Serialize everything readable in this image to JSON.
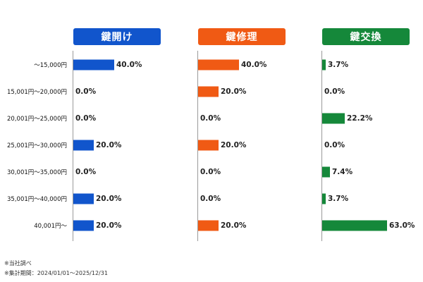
{
  "chart_data": {
    "type": "bar",
    "categories": [
      "～15,000円",
      "15,001円～20,000円",
      "20,001円～25,000円",
      "25,001円～30,000円",
      "30,001円～35,000円",
      "35,001円～40,000円",
      "40,001円～"
    ],
    "series": [
      {
        "name": "鍵開け",
        "color": "#1155cc",
        "values": [
          40.0,
          0.0,
          0.0,
          20.0,
          0.0,
          20.0,
          20.0
        ]
      },
      {
        "name": "鍵修理",
        "color": "#f05a14",
        "values": [
          40.0,
          20.0,
          0.0,
          20.0,
          0.0,
          0.0,
          20.0
        ]
      },
      {
        "name": "鍵交換",
        "color": "#15883a",
        "values": [
          3.7,
          0.0,
          22.2,
          0.0,
          7.4,
          3.7,
          63.0
        ]
      }
    ],
    "value_unit": "%",
    "xlim": [
      0,
      63
    ],
    "grid": false,
    "legend": "column headers"
  },
  "notes": {
    "line1": "※当社調べ",
    "line2": "※集計期間：2024/01/01～2025/12/31"
  }
}
